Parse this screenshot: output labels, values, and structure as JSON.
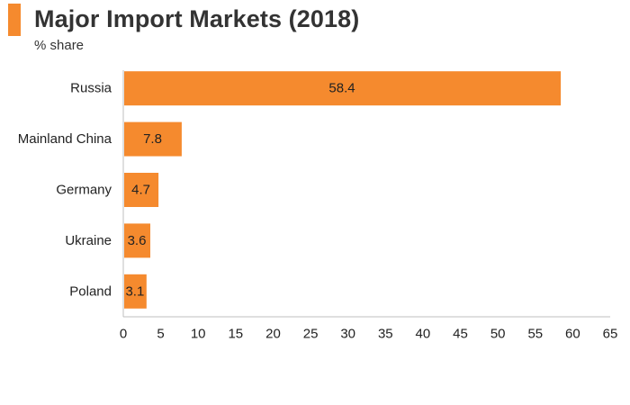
{
  "header": {
    "title": "Major Import Markets (2018)",
    "subtitle": "% share",
    "accent_color": "#f58a2e"
  },
  "chart_data": {
    "type": "bar",
    "orientation": "horizontal",
    "title": "Major Import Markets (2018)",
    "subtitle": "% share",
    "xlabel": "",
    "ylabel": "",
    "categories": [
      "Russia",
      "Mainland China",
      "Germany",
      "Ukraine",
      "Poland"
    ],
    "values": [
      58.4,
      7.8,
      4.7,
      3.6,
      3.1
    ],
    "data_labels": [
      "58.4",
      "7.8",
      "4.7",
      "3.6",
      "3.1"
    ],
    "xlim": [
      0,
      65
    ],
    "xticks": [
      0,
      5,
      10,
      15,
      20,
      25,
      30,
      35,
      40,
      45,
      50,
      55,
      60,
      65
    ],
    "grid": false,
    "legend": "none",
    "bar_color": "#f58a2e",
    "axis_color": "#bfbfbf"
  }
}
